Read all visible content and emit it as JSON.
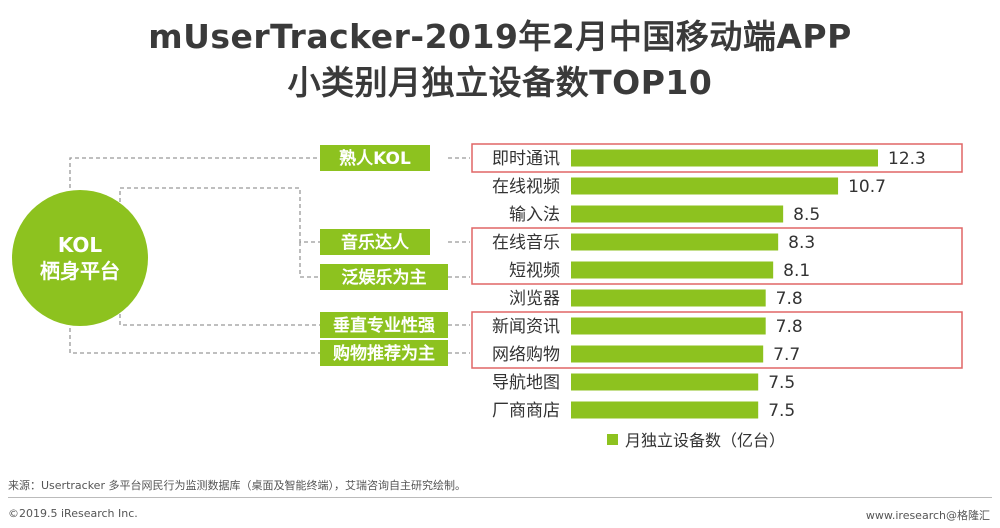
{
  "title_line1": "mUserTracker-2019年2月中国移动端APP",
  "title_line2": "小类别月独立设备数TOP10",
  "chart_data": {
    "type": "bar",
    "orientation": "horizontal",
    "categories": [
      "即时通讯",
      "在线视频",
      "输入法",
      "在线音乐",
      "短视频",
      "浏览器",
      "新闻资讯",
      "网络购物",
      "导航地图",
      "厂商商店"
    ],
    "values": [
      12.3,
      10.7,
      8.5,
      8.3,
      8.1,
      7.8,
      7.8,
      7.7,
      7.5,
      7.5
    ],
    "value_labels": [
      "12.3",
      "10.7",
      "8.5",
      "8.3",
      "8.1",
      "7.8",
      "7.8",
      "7.7",
      "7.5",
      "7.5"
    ],
    "legend": "月独立设备数（亿台）",
    "bar_color": "#8dc21f",
    "highlight_color": "#e06666"
  },
  "platform": {
    "circle_label_line1": "KOL",
    "circle_label_line2": "栖身平台",
    "tags": [
      "熟人KOL",
      "音乐达人",
      "泛娱乐为主",
      "垂直专业性强",
      "购物推荐为主"
    ]
  },
  "footer": {
    "source": "来源：Usertracker 多平台网民行为监测数据库（桌面及智能终端），艾瑞咨询自主研究绘制。",
    "copyright": "©2019.5 iResearch Inc.",
    "url": "www.iresearch@格隆汇"
  }
}
